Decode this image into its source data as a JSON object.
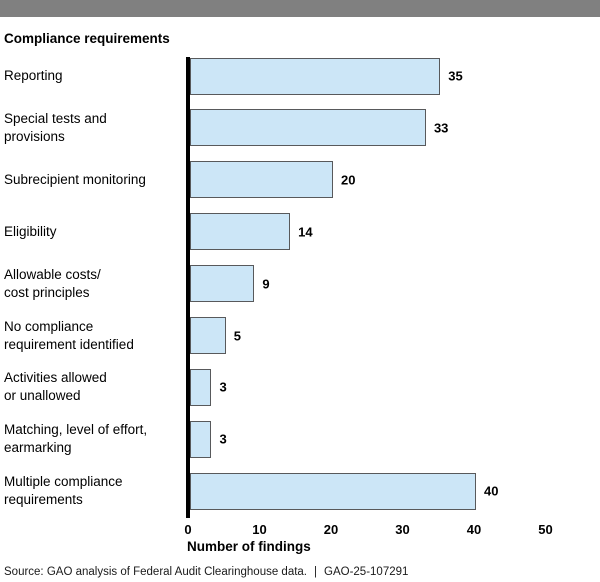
{
  "header": {
    "top_bar_color": "#808080"
  },
  "chart_data": {
    "type": "bar",
    "orientation": "horizontal",
    "title": "Compliance requirements",
    "xlabel": "Number of findings",
    "categories": [
      "Reporting",
      "Special tests and\nprovisions",
      "Subrecipient monitoring",
      "Eligibility",
      "Allowable costs/\ncost principles",
      "No compliance\nrequirement identified",
      "Activities allowed\nor unallowed",
      "Matching, level of effort,\nearmarking",
      "Multiple compliance\nrequirements"
    ],
    "values": [
      35,
      33,
      20,
      14,
      9,
      5,
      3,
      3,
      40
    ],
    "xlim": [
      0,
      50
    ],
    "xticks": [
      0,
      10,
      20,
      30,
      40,
      50
    ],
    "grid": "off",
    "legend": "none",
    "bar_color": "#cce6f7",
    "bar_border_color": "#58595b",
    "axis_color": "#000000"
  },
  "footer": {
    "source": "Source: GAO analysis of Federal Audit Clearinghouse data.",
    "separator": "|",
    "report_number": "GAO-25-107291"
  }
}
